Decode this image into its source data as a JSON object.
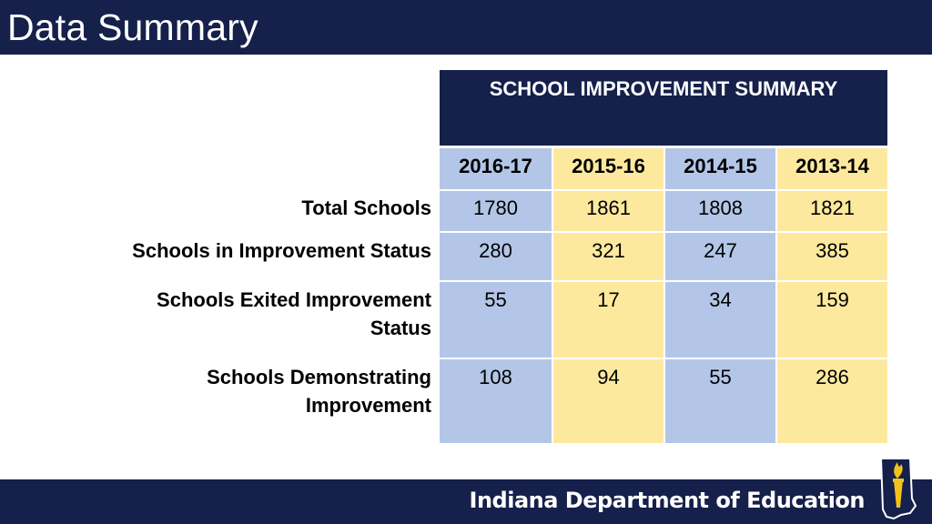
{
  "slide": {
    "title": "Data Summary"
  },
  "table": {
    "header": "SCHOOL IMPROVEMENT SUMMARY",
    "years": [
      "2016-17",
      "2015-16",
      "2014-15",
      "2013-14"
    ],
    "rows": [
      {
        "label": "Total Schools",
        "values": [
          "1780",
          "1861",
          "1808",
          "1821"
        ]
      },
      {
        "label": "Schools in Improvement Status",
        "values": [
          "280",
          "321",
          "247",
          "385"
        ]
      },
      {
        "label": "Schools Exited Improvement Status",
        "values": [
          "55",
          "17",
          "34",
          "159"
        ]
      },
      {
        "label": "Schools Demonstrating Improvement",
        "values": [
          "108",
          "94",
          "55",
          "286"
        ]
      }
    ]
  },
  "footer": {
    "org_name": "Indiana Department of Education",
    "logo_icon": "indiana-torch-icon"
  },
  "colors": {
    "navy": "#15204b",
    "blue_col": "#b3c6e7",
    "yellow_col": "#fde99e",
    "gold": "#f2c11b"
  }
}
